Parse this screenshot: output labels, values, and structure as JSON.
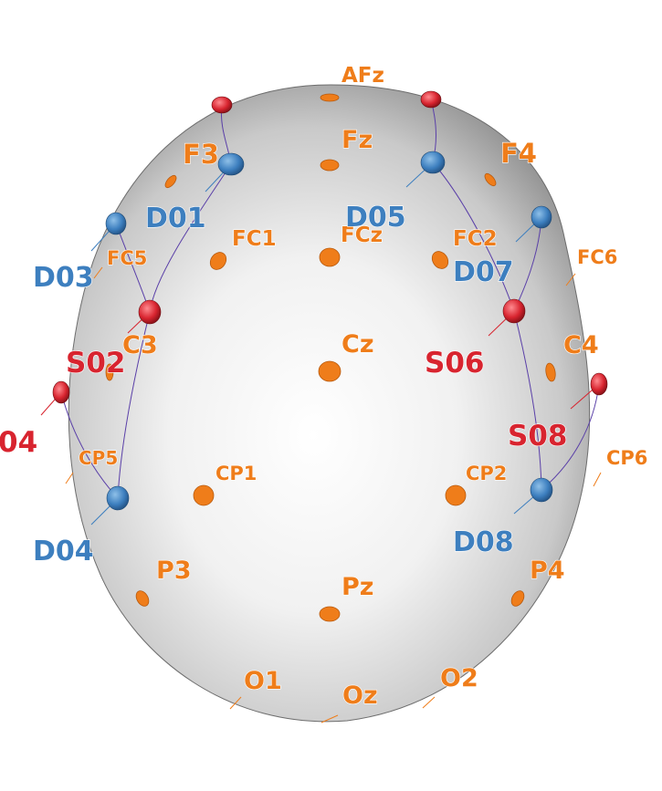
{
  "colors": {
    "eeg": "#ef7d1a",
    "detector": "#3d7fbf",
    "source": "#d8242f",
    "channel_line": "#5a3fa8",
    "head_light": "#ffffff",
    "head_dark": "#7a7a7a"
  },
  "eeg_electrodes": [
    "AFz",
    "Fz",
    "F3",
    "F4",
    "FC1",
    "FCz",
    "FC2",
    "FC5",
    "FC6",
    "C3",
    "Cz",
    "C4",
    "CP5",
    "CP1",
    "CP2",
    "CP6",
    "P3",
    "Pz",
    "P4",
    "O1",
    "Oz",
    "O2"
  ],
  "detectors": [
    "D01",
    "D03",
    "D04",
    "D05",
    "D07",
    "D08"
  ],
  "sources": [
    "S02",
    "04",
    "S06",
    "S08"
  ]
}
